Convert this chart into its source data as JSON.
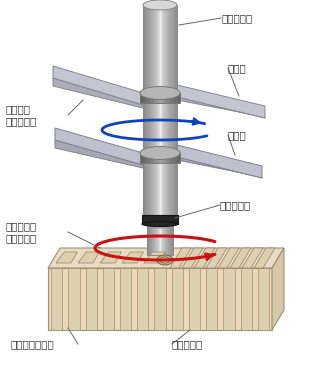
{
  "bg_color": "#ffffff",
  "labels": {
    "outer_rod": "外管ロッド",
    "blade_top": "撹拌翼",
    "blade_mid": "撹拌翼",
    "stir_only": "撹拌専用\n（左回転）",
    "drill_stir": "削孔・撹拌\n（右回転）",
    "inner_rod": "内管ロッド",
    "slurry_out": "スラリー吐出口",
    "stir_head": "撹拌ヘッド"
  },
  "colors": {
    "blue_arrow": "#1144bb",
    "red_arrow": "#cc1111",
    "text_color": "#333333",
    "connector_line": "#666666"
  },
  "font_size": 7.5
}
